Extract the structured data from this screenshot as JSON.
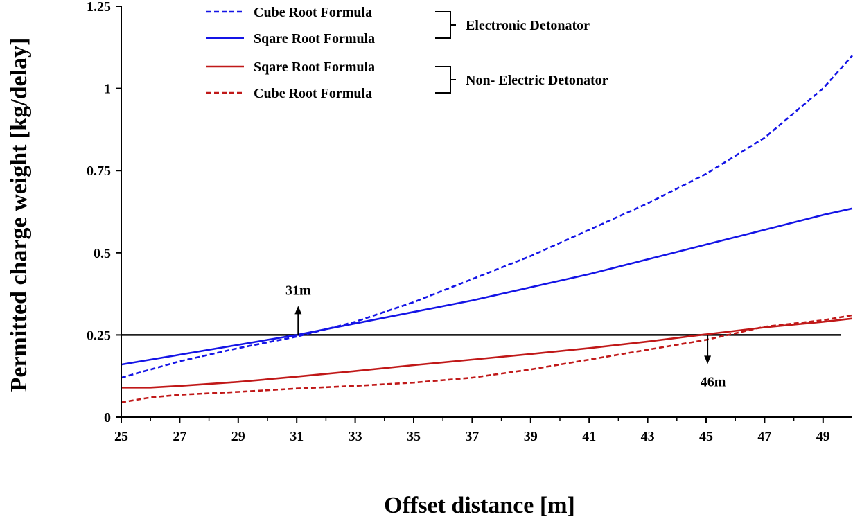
{
  "chart_data": {
    "type": "line",
    "xlabel": "Offset distance [m]",
    "ylabel": "Permitted charge weight [kg/delay]",
    "xlim": [
      25,
      50
    ],
    "ylim": [
      0,
      1.25
    ],
    "x_ticks": [
      25,
      27,
      29,
      31,
      33,
      35,
      37,
      39,
      41,
      43,
      45,
      47,
      49
    ],
    "y_ticks": [
      {
        "value": 0,
        "label": "0"
      },
      {
        "value": 0.25,
        "label": "0.25"
      },
      {
        "value": 0.5,
        "label": "0.5"
      },
      {
        "value": 0.75,
        "label": "0.75"
      },
      {
        "value": 1,
        "label": "1"
      },
      {
        "value": 1.25,
        "label": "1.25"
      }
    ],
    "grid": false,
    "legend_position": "top-center",
    "series": [
      {
        "name": "Cube Root Formula",
        "group": "electronic",
        "color": "#1414e6",
        "style": "dashed",
        "x": [
          25,
          27,
          29,
          31,
          33,
          35,
          37,
          39,
          41,
          43,
          45,
          47,
          49,
          50
        ],
        "y": [
          0.12,
          0.17,
          0.21,
          0.245,
          0.29,
          0.35,
          0.42,
          0.49,
          0.57,
          0.65,
          0.74,
          0.85,
          1.0,
          1.1
        ]
      },
      {
        "name": "Sqare Root Formula",
        "group": "electronic",
        "color": "#1414e6",
        "style": "solid",
        "x": [
          25,
          27,
          29,
          31,
          33,
          35,
          37,
          39,
          41,
          43,
          45,
          47,
          49,
          50
        ],
        "y": [
          0.16,
          0.19,
          0.22,
          0.25,
          0.285,
          0.32,
          0.355,
          0.395,
          0.435,
          0.48,
          0.525,
          0.57,
          0.615,
          0.635
        ]
      },
      {
        "name": "Sqare Root Formula",
        "group": "non-electric",
        "color": "#c01818",
        "style": "solid",
        "x": [
          25,
          26,
          27,
          29,
          31,
          33,
          35,
          37,
          39,
          41,
          43,
          45,
          47,
          49,
          50
        ],
        "y": [
          0.09,
          0.09,
          0.095,
          0.107,
          0.123,
          0.14,
          0.158,
          0.175,
          0.192,
          0.21,
          0.23,
          0.252,
          0.273,
          0.29,
          0.3
        ]
      },
      {
        "name": "Cube Root Formula",
        "group": "non-electric",
        "color": "#c01818",
        "style": "dashed",
        "x": [
          25,
          26,
          27,
          29,
          31,
          33,
          35,
          37,
          39,
          41,
          43,
          45,
          47,
          49,
          50
        ],
        "y": [
          0.045,
          0.06,
          0.068,
          0.077,
          0.087,
          0.095,
          0.105,
          0.12,
          0.145,
          0.175,
          0.205,
          0.235,
          0.275,
          0.295,
          0.31
        ]
      }
    ],
    "legend_groups": [
      {
        "label": "Electronic Detonator",
        "series_index": [
          0,
          1
        ]
      },
      {
        "label": "Non- Electric Detonator",
        "series_index": [
          2,
          3
        ]
      }
    ],
    "threshold": {
      "y": 0.25,
      "x_start": 25,
      "x_end": 49.6,
      "color": "#000000"
    },
    "annotations": [
      {
        "label": "31m",
        "x": 31.05,
        "y": 0.25,
        "direction": "up"
      },
      {
        "label": "46m",
        "x": 45.05,
        "y": 0.25,
        "direction": "down"
      }
    ]
  }
}
